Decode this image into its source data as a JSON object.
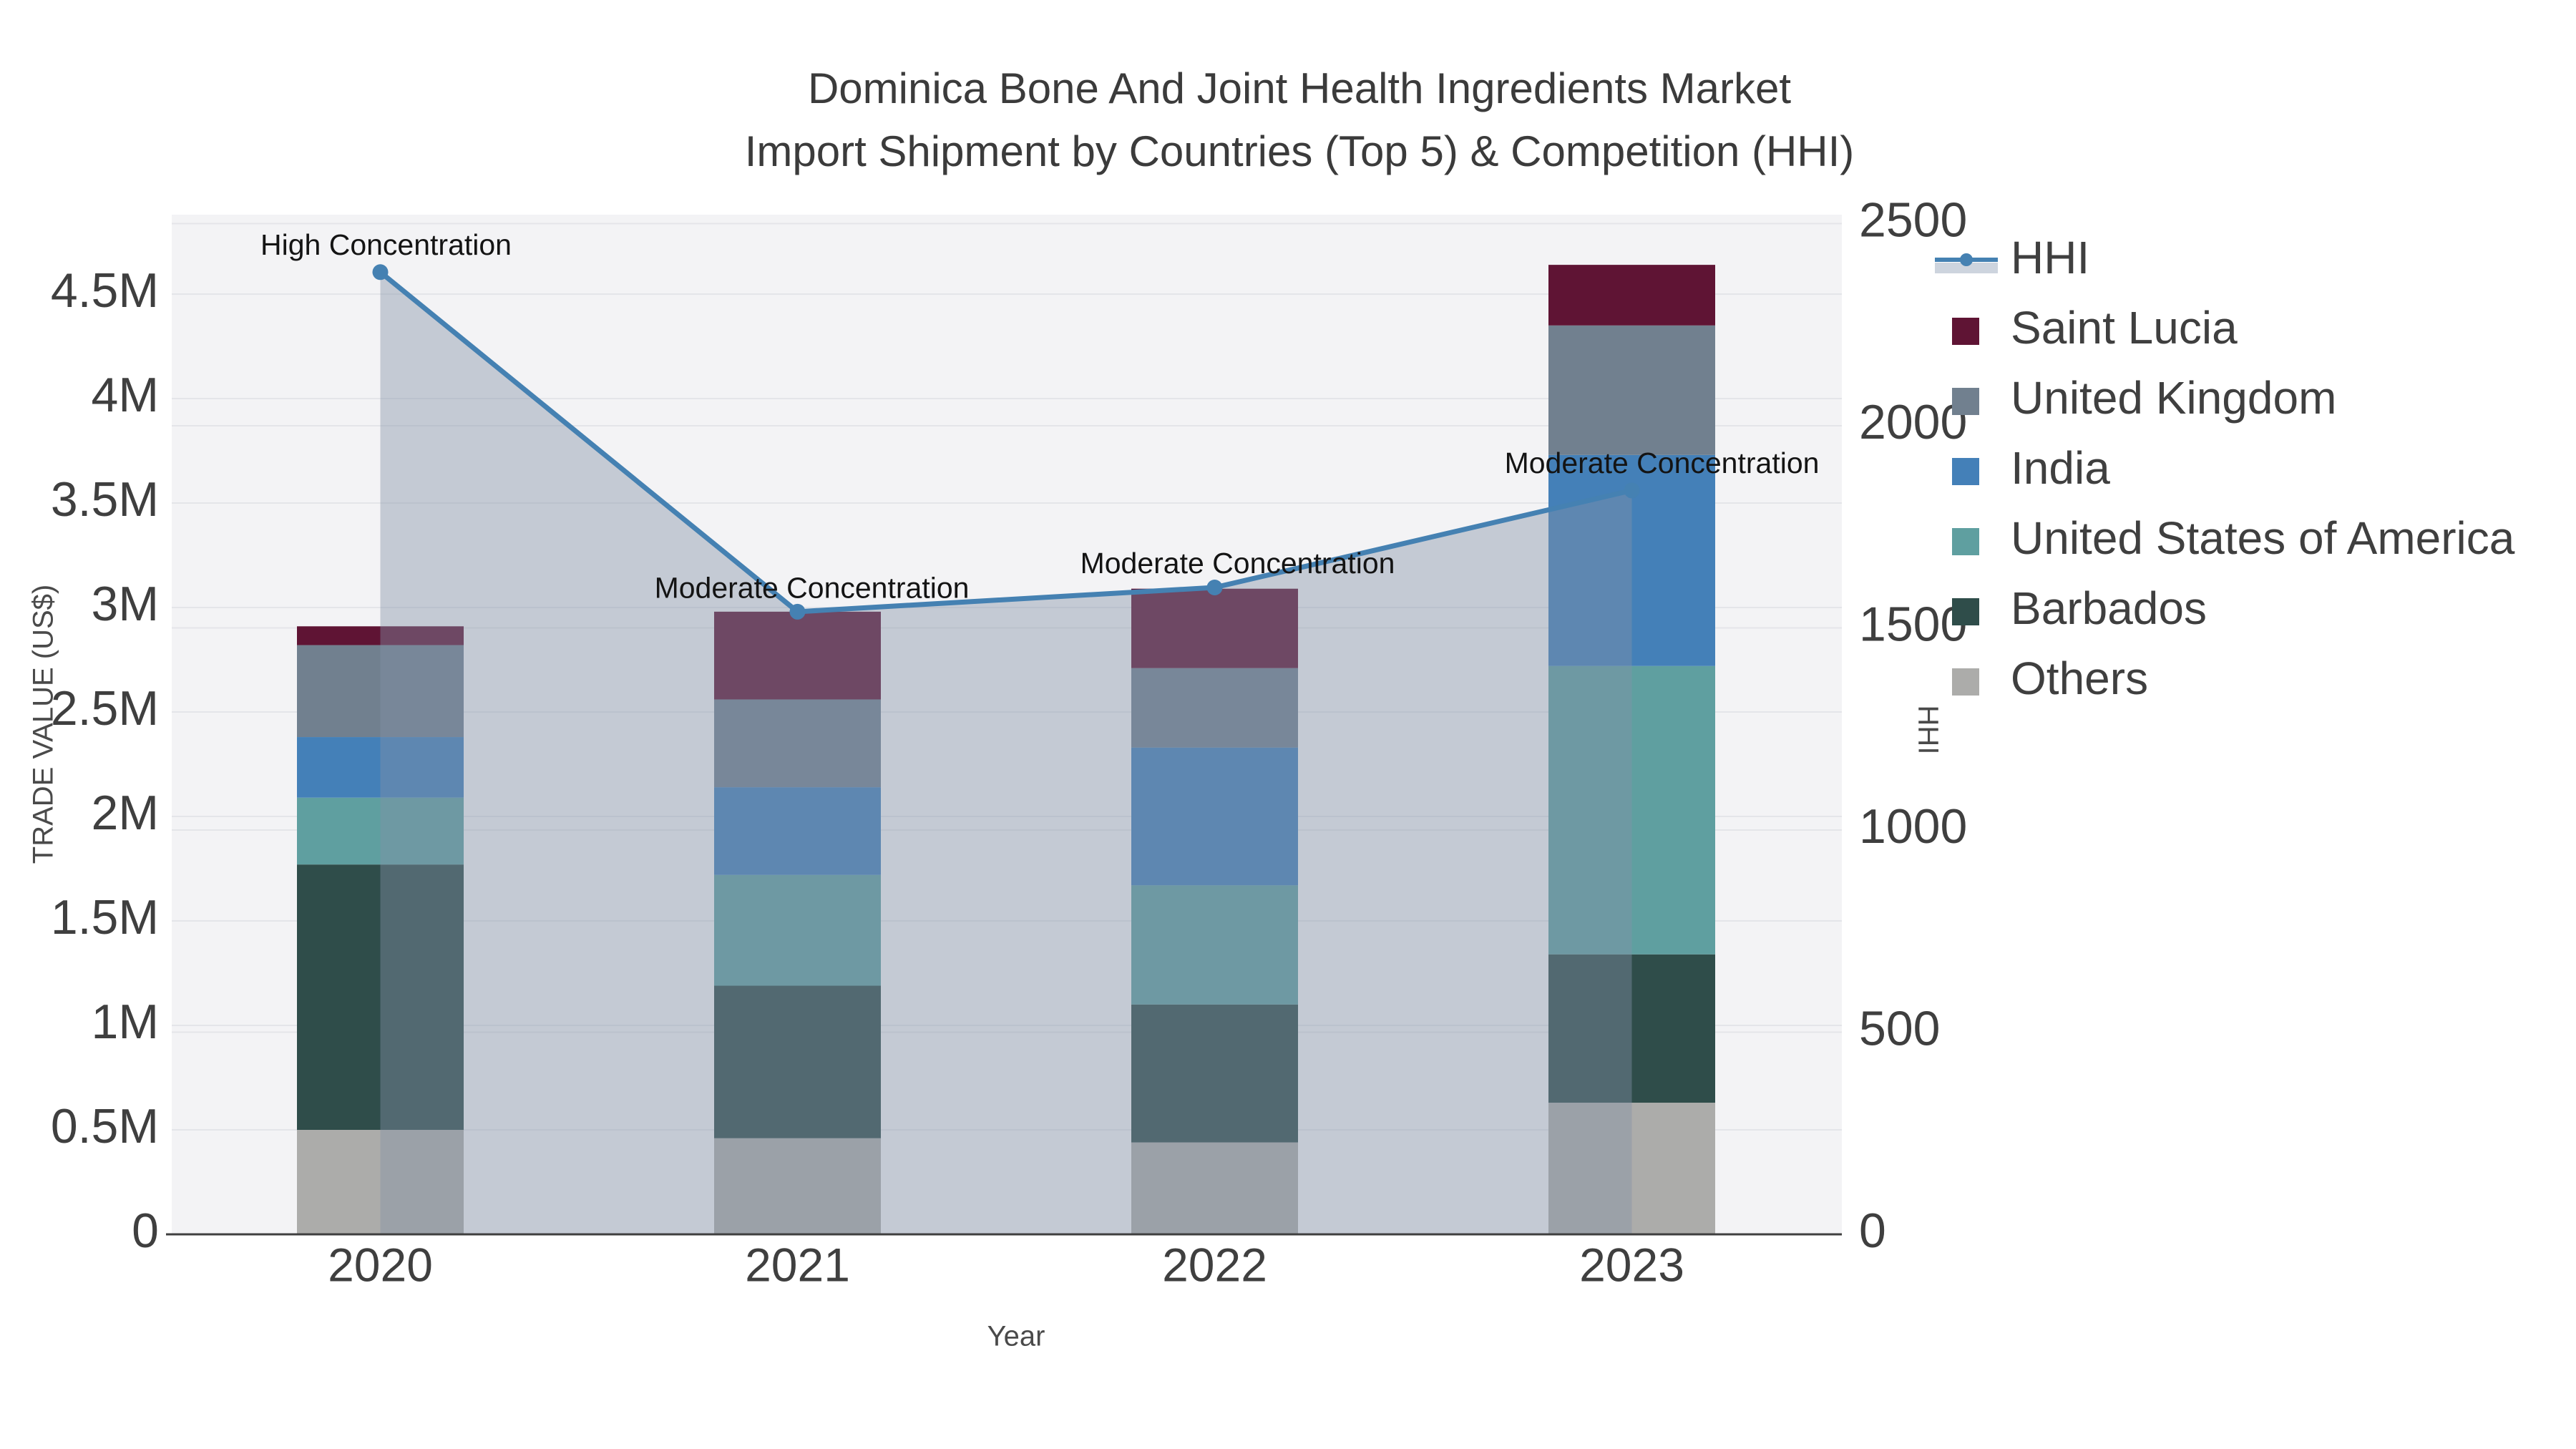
{
  "title": {
    "line1": "Dominica Bone And Joint Health Ingredients Market",
    "line2": "Import Shipment by Countries (Top 5) & Competition (HHI)"
  },
  "axes": {
    "x_title": "Year",
    "y_left_title": "TRADE VALUE (US$)",
    "y_right_title": "HHI",
    "y_left_ticks": [
      {
        "v": 0,
        "label": "0"
      },
      {
        "v": 0.5,
        "label": "0.5M"
      },
      {
        "v": 1,
        "label": "1M"
      },
      {
        "v": 1.5,
        "label": "1.5M"
      },
      {
        "v": 2,
        "label": "2M"
      },
      {
        "v": 2.5,
        "label": "2.5M"
      },
      {
        "v": 3,
        "label": "3M"
      },
      {
        "v": 3.5,
        "label": "3.5M"
      },
      {
        "v": 4,
        "label": "4M"
      },
      {
        "v": 4.5,
        "label": "4.5M"
      }
    ],
    "y_right_ticks": [
      {
        "v": 0,
        "label": "0"
      },
      {
        "v": 500,
        "label": "500"
      },
      {
        "v": 1000,
        "label": "1000"
      },
      {
        "v": 1500,
        "label": "1500"
      },
      {
        "v": 2000,
        "label": "2000"
      },
      {
        "v": 2500,
        "label": "2500"
      }
    ]
  },
  "legend": [
    {
      "label": "HHI",
      "type": "line",
      "color": "#4581B2",
      "band": "#CDD4DE"
    },
    {
      "label": "Saint Lucia",
      "type": "square",
      "color": "#5F1434"
    },
    {
      "label": "United Kingdom",
      "type": "square",
      "color": "#71808F"
    },
    {
      "label": "India",
      "type": "square",
      "color": "#4480B8"
    },
    {
      "label": "United States of America",
      "type": "square",
      "color": "#5F9FA0"
    },
    {
      "label": "Barbados",
      "type": "square",
      "color": "#2F4D4A"
    },
    {
      "label": "Others",
      "type": "square",
      "color": "#ACACAA"
    }
  ],
  "chart_data": {
    "type": "bar+line",
    "categories": [
      "2020",
      "2021",
      "2022",
      "2023"
    ],
    "bar_value_unit": "million US$",
    "stacked": true,
    "series": [
      {
        "name": "Saint Lucia",
        "color": "#5F1434",
        "values": [
          0.09,
          0.42,
          0.38,
          0.29
        ]
      },
      {
        "name": "United Kingdom",
        "color": "#71808F",
        "values": [
          0.44,
          0.42,
          0.38,
          0.62
        ]
      },
      {
        "name": "India",
        "color": "#4480B8",
        "values": [
          0.29,
          0.42,
          0.66,
          1.01
        ]
      },
      {
        "name": "United States of America",
        "color": "#5F9FA0",
        "values": [
          0.32,
          0.53,
          0.57,
          1.38
        ]
      },
      {
        "name": "Barbados",
        "color": "#2F4D4A",
        "values": [
          1.27,
          0.73,
          0.66,
          0.71
        ]
      },
      {
        "name": "Others",
        "color": "#ACACAA",
        "values": [
          0.5,
          0.46,
          0.44,
          0.63
        ]
      }
    ],
    "bar_totals": [
      2.91,
      2.98,
      3.09,
      4.64
    ],
    "line_series": {
      "name": "HHI",
      "values": [
        2380,
        1540,
        1600,
        1840
      ],
      "color": "#4581B2",
      "area_fill": "rgba(130,145,168,0.42)"
    },
    "annotations": [
      {
        "year": "2020",
        "text": "High Concentration"
      },
      {
        "year": "2021",
        "text": "Moderate Concentration"
      },
      {
        "year": "2022",
        "text": "Moderate Concentration"
      },
      {
        "year": "2023",
        "text": "Moderate Concentration"
      }
    ],
    "xlabel": "Year",
    "ylabel_left": "TRADE VALUE (US$)",
    "ylabel_right": "HHI",
    "ylim_left": [
      0,
      4.88
    ],
    "ylim_right": [
      0,
      2522
    ],
    "grid": true,
    "legend_position": "right"
  },
  "style": {
    "plot_bg": "#F3F3F5",
    "grid_color": "#E4E5E9",
    "axis_color": "#3F3F3F",
    "text_color": "#3F3F3F"
  }
}
